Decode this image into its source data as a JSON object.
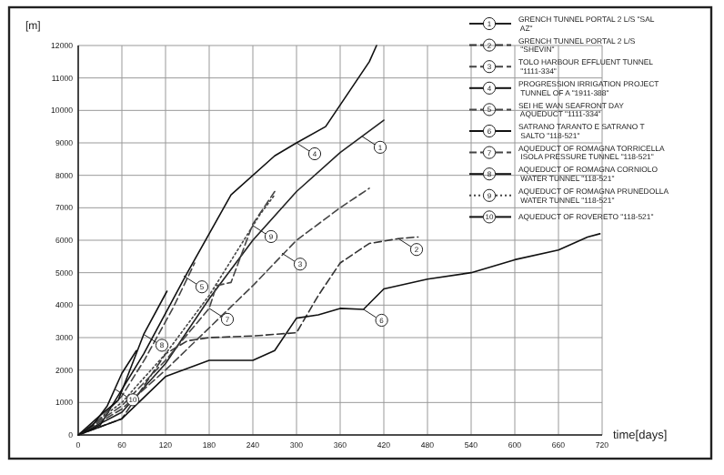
{
  "chart_data": {
    "type": "line",
    "xlabel": "time[days]",
    "ylabel": "[m]",
    "xlim": [
      0,
      720
    ],
    "ylim": [
      0,
      12000
    ],
    "xticks": [
      0,
      60,
      120,
      180,
      240,
      300,
      360,
      420,
      480,
      540,
      600,
      660,
      720
    ],
    "yticks": [
      0,
      1000,
      2000,
      3000,
      4000,
      5000,
      6000,
      7000,
      8000,
      9000,
      10000,
      11000,
      12000
    ],
    "grid": true,
    "legend": "top right",
    "marker": "none",
    "series": [
      {
        "name": "GRENCH TUNNEL PORTAL 2 L/S \"SAL AZ\"",
        "color": "#222222",
        "line_style": "solid",
        "x": [
          0,
          60,
          120,
          180,
          240,
          300,
          360,
          420
        ],
        "values": [
          0,
          700,
          2200,
          4200,
          6000,
          7500,
          8700,
          9700
        ]
      },
      {
        "name": "GRENCH TUNNEL PORTAL 2 L/S \"SHEVIN\"",
        "color": "#333333",
        "line_style": "dashed",
        "x": [
          0,
          60,
          90,
          120,
          150,
          180,
          240,
          300,
          330,
          360,
          400,
          440,
          467
        ],
        "values": [
          0,
          500,
          1500,
          2500,
          2900,
          3000,
          3050,
          3150,
          4300,
          5300,
          5900,
          6050,
          6100
        ]
      },
      {
        "name": "TOLO HARBOUR EFFLUENT TUNNEL \"1111-334\"",
        "color": "#444444",
        "line_style": "dashed",
        "x": [
          0,
          60,
          120,
          180,
          240,
          300,
          360,
          400
        ],
        "values": [
          0,
          800,
          2000,
          3300,
          4600,
          6000,
          7000,
          7600
        ]
      },
      {
        "name": "PROGRESSION IRRIGATION PROJECT TUNNEL OF A \"1911-388\"",
        "color": "#111111",
        "line_style": "solid",
        "x": [
          0,
          30,
          90,
          150,
          210,
          270,
          300,
          340,
          400,
          410
        ],
        "values": [
          0,
          300,
          2500,
          5000,
          7400,
          8600,
          9000,
          9500,
          11500,
          12000
        ]
      },
      {
        "name": "SEI HE WAN SEAFRONT DAY AQUEDUCT \"1111-334\"",
        "color": "#444444",
        "line_style": "dashed",
        "x": [
          0,
          30,
          60,
          92,
          130,
          160
        ],
        "values": [
          0,
          500,
          1200,
          2350,
          3900,
          5300
        ]
      },
      {
        "name": "SATRANO TARANTO E SATRANO T SALTO \"118-521\"",
        "color": "#111111",
        "line_style": "solid",
        "x": [
          0,
          60,
          120,
          180,
          240,
          270,
          300,
          330,
          360,
          392,
          420,
          480,
          540,
          600,
          660,
          700,
          717
        ],
        "values": [
          0,
          500,
          1800,
          2300,
          2300,
          2600,
          3600,
          3700,
          3900,
          3870,
          4500,
          4800,
          5000,
          5400,
          5700,
          6100,
          6200
        ]
      },
      {
        "name": "AQUEDUCT OF ROMAGNA TORRICELLA ISOLA PRESSURE TUNNEL \"118-521\"",
        "color": "#444444",
        "line_style": "dashed",
        "x": [
          0,
          60,
          120,
          180,
          190,
          210,
          240,
          270
        ],
        "values": [
          0,
          900,
          2300,
          3900,
          4600,
          4700,
          6500,
          7500
        ]
      },
      {
        "name": "AQUEDUCT OF ROMAGNA CORNIOLO WATER TUNNEL \"118-521\"",
        "color": "#111111",
        "line_style": "solid",
        "x": [
          0,
          30,
          55,
          90,
          122
        ],
        "values": [
          0,
          600,
          1070,
          3100,
          4430
        ]
      },
      {
        "name": "AQUEDUCT OF ROMAGNA PRUNEDOLLA WATER TUNNEL \"118-521\"",
        "color": "#444444",
        "line_style": "dotted",
        "x": [
          0,
          60,
          120,
          180,
          250,
          270
        ],
        "values": [
          0,
          1000,
          2500,
          4300,
          6800,
          7400
        ]
      },
      {
        "name": "AQUEDUCT OF ROVERETO \"118-521\"",
        "color": "#111111",
        "line_style": "solid",
        "x": [
          0,
          20,
          40,
          60,
          80
        ],
        "values": [
          0,
          300,
          900,
          1900,
          2600
        ]
      }
    ],
    "annotations": [
      {
        "text": "1",
        "x": 390,
        "y": 9200
      },
      {
        "text": "2",
        "x": 440,
        "y": 6050
      },
      {
        "text": "3",
        "x": 280,
        "y": 5600
      },
      {
        "text": "4",
        "x": 300,
        "y": 9000
      },
      {
        "text": "5",
        "x": 145,
        "y": 4900
      },
      {
        "text": "6",
        "x": 392,
        "y": 3870
      },
      {
        "text": "7",
        "x": 180,
        "y": 3900
      },
      {
        "text": "8",
        "x": 90,
        "y": 3100
      },
      {
        "text": "9",
        "x": 240,
        "y": 6450
      },
      {
        "text": "10",
        "x": 50,
        "y": 1420
      }
    ]
  }
}
